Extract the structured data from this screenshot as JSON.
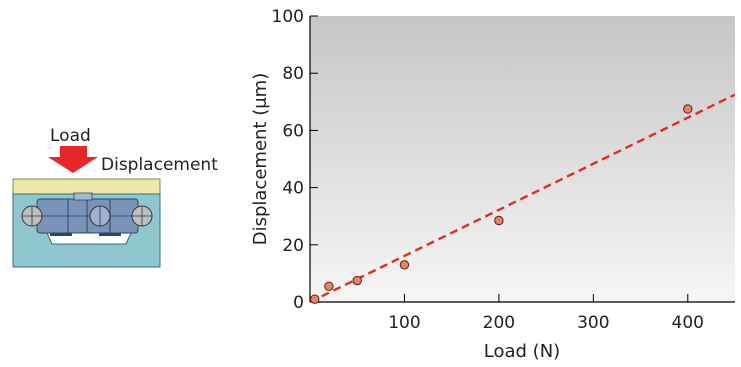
{
  "illustration": {
    "load_label": "Load",
    "displacement_label": "Displacement",
    "colors": {
      "arrow": "#e8252a",
      "top_plate": "#eee8a6",
      "housing": "#8fc6d0",
      "housing_stroke": "#3c6c78",
      "block": "#7a93b8",
      "block_stroke": "#2f4566",
      "ball": "#bfbfbf"
    }
  },
  "chart_data": {
    "type": "scatter",
    "xlabel": "Load (N)",
    "ylabel": "Displacement (μm)",
    "xlim": [
      0,
      450
    ],
    "ylim": [
      0,
      100
    ],
    "x_ticks": [
      100,
      200,
      300,
      400
    ],
    "x_tick_labels": [
      "100",
      "200",
      "300",
      "400"
    ],
    "y_ticks": [
      0,
      20,
      40,
      60,
      80,
      100
    ],
    "y_tick_labels": [
      "0",
      "20",
      "40",
      "60",
      "80",
      "100"
    ],
    "grid": false,
    "series": [
      {
        "x": [
          5,
          20,
          50,
          100,
          200,
          400
        ],
        "y": [
          1,
          5.5,
          7.5,
          13,
          28.5,
          67.5
        ],
        "marker_color": "#e9826a",
        "marker_edge": "#5a2010"
      }
    ],
    "trend_line": {
      "x": [
        0,
        450
      ],
      "y": [
        0,
        72.5
      ],
      "color": "#e32b25",
      "style": "dashed"
    },
    "background_gradient": [
      "#c6c6c6",
      "#f6f6f6"
    ]
  }
}
